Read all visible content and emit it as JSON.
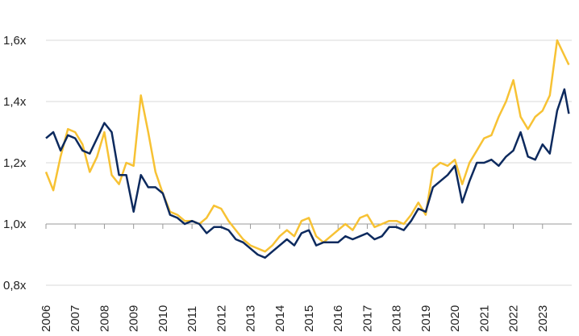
{
  "chart_data": {
    "type": "line",
    "x": [
      2006,
      2006.25,
      2006.5,
      2006.75,
      2007,
      2007.25,
      2007.5,
      2007.75,
      2008,
      2008.25,
      2008.5,
      2008.75,
      2009,
      2009.25,
      2009.5,
      2009.75,
      2010,
      2010.25,
      2010.5,
      2010.75,
      2011,
      2011.25,
      2011.5,
      2011.75,
      2012,
      2012.25,
      2012.5,
      2012.75,
      2013,
      2013.25,
      2013.5,
      2013.75,
      2014,
      2014.25,
      2014.5,
      2014.75,
      2015,
      2015.25,
      2015.5,
      2015.75,
      2016,
      2016.25,
      2016.5,
      2016.75,
      2017,
      2017.25,
      2017.5,
      2017.75,
      2018,
      2018.25,
      2018.5,
      2018.75,
      2019,
      2019.25,
      2019.5,
      2019.75,
      2020,
      2020.25,
      2020.5,
      2020.75,
      2021,
      2021.25,
      2021.5,
      2021.75,
      2022,
      2022.25,
      2022.5,
      2022.75,
      2023,
      2023.25,
      2023.5,
      2023.75,
      2023.9
    ],
    "series": [
      {
        "color": "#0d2a5e",
        "values": [
          1.28,
          1.3,
          1.24,
          1.29,
          1.28,
          1.24,
          1.23,
          1.28,
          1.33,
          1.3,
          1.16,
          1.16,
          1.04,
          1.16,
          1.12,
          1.12,
          1.1,
          1.03,
          1.02,
          1.0,
          1.01,
          1.0,
          0.97,
          0.99,
          0.99,
          0.98,
          0.95,
          0.94,
          0.92,
          0.9,
          0.89,
          0.91,
          0.93,
          0.95,
          0.93,
          0.97,
          0.98,
          0.93,
          0.94,
          0.94,
          0.94,
          0.96,
          0.95,
          0.96,
          0.97,
          0.95,
          0.96,
          0.99,
          0.99,
          0.98,
          1.01,
          1.05,
          1.04,
          1.12,
          1.14,
          1.16,
          1.19,
          1.07,
          1.14,
          1.2,
          1.2,
          1.21,
          1.19,
          1.22,
          1.24,
          1.3,
          1.22,
          1.21,
          1.26,
          1.23,
          1.37,
          1.44,
          1.36
        ]
      },
      {
        "color": "#f7c234",
        "values": [
          1.17,
          1.11,
          1.22,
          1.31,
          1.3,
          1.26,
          1.17,
          1.22,
          1.3,
          1.16,
          1.13,
          1.2,
          1.19,
          1.42,
          1.3,
          1.17,
          1.1,
          1.04,
          1.03,
          1.01,
          1.01,
          1.0,
          1.02,
          1.06,
          1.05,
          1.01,
          0.98,
          0.95,
          0.93,
          0.92,
          0.91,
          0.93,
          0.96,
          0.98,
          0.96,
          1.01,
          1.02,
          0.96,
          0.94,
          0.96,
          0.98,
          1.0,
          0.98,
          1.02,
          1.03,
          0.99,
          1.0,
          1.01,
          1.01,
          1.0,
          1.03,
          1.07,
          1.03,
          1.18,
          1.2,
          1.19,
          1.21,
          1.13,
          1.2,
          1.24,
          1.28,
          1.29,
          1.35,
          1.4,
          1.47,
          1.35,
          1.31,
          1.35,
          1.37,
          1.42,
          1.6,
          1.55,
          1.52
        ]
      }
    ],
    "xlim": [
      2006,
      2024
    ],
    "xticks": [
      2006,
      2007,
      2008,
      2009,
      2010,
      2011,
      2012,
      2013,
      2014,
      2015,
      2016,
      2017,
      2018,
      2019,
      2020,
      2021,
      2022,
      2023
    ],
    "ylim": [
      0.8,
      1.7
    ],
    "yticks": [
      {
        "value": 0.8,
        "label": "0,8x"
      },
      {
        "value": 1.0,
        "label": "1,0x"
      },
      {
        "value": 1.2,
        "label": "1,2x"
      },
      {
        "value": 1.4,
        "label": "1,4x"
      },
      {
        "value": 1.6,
        "label": "1,6x"
      }
    ],
    "grid": true
  }
}
